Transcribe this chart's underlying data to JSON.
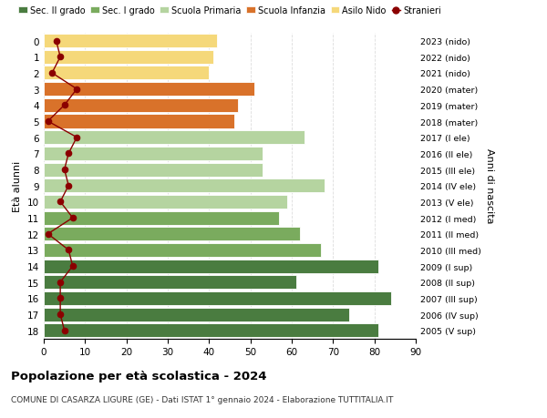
{
  "ages": [
    18,
    17,
    16,
    15,
    14,
    13,
    12,
    11,
    10,
    9,
    8,
    7,
    6,
    5,
    4,
    3,
    2,
    1,
    0
  ],
  "right_labels": [
    "2005 (V sup)",
    "2006 (IV sup)",
    "2007 (III sup)",
    "2008 (II sup)",
    "2009 (I sup)",
    "2010 (III med)",
    "2011 (II med)",
    "2012 (I med)",
    "2013 (V ele)",
    "2014 (IV ele)",
    "2015 (III ele)",
    "2016 (II ele)",
    "2017 (I ele)",
    "2018 (mater)",
    "2019 (mater)",
    "2020 (mater)",
    "2021 (nido)",
    "2022 (nido)",
    "2023 (nido)"
  ],
  "bar_values": [
    81,
    74,
    84,
    61,
    81,
    67,
    62,
    57,
    59,
    68,
    53,
    53,
    63,
    46,
    47,
    51,
    40,
    41,
    42
  ],
  "bar_colors": [
    "#4a7c40",
    "#4a7c40",
    "#4a7c40",
    "#4a7c40",
    "#4a7c40",
    "#7aab5e",
    "#7aab5e",
    "#7aab5e",
    "#b5d4a0",
    "#b5d4a0",
    "#b5d4a0",
    "#b5d4a0",
    "#b5d4a0",
    "#d9722a",
    "#d9722a",
    "#d9722a",
    "#f5d87a",
    "#f5d87a",
    "#f5d87a"
  ],
  "stranieri_values": [
    5,
    4,
    4,
    4,
    7,
    6,
    1,
    7,
    4,
    6,
    5,
    6,
    8,
    1,
    5,
    8,
    2,
    4,
    3
  ],
  "legend_labels": [
    "Sec. II grado",
    "Sec. I grado",
    "Scuola Primaria",
    "Scuola Infanzia",
    "Asilo Nido",
    "Stranieri"
  ],
  "legend_colors": [
    "#4a7c40",
    "#7aab5e",
    "#b5d4a0",
    "#d9722a",
    "#f5d87a",
    "#b22222"
  ],
  "ylabel": "Età alunni",
  "right_ylabel": "Anni di nascita",
  "title": "Popolazione per età scolastica - 2024",
  "subtitle": "COMUNE DI CASARZA LIGURE (GE) - Dati ISTAT 1° gennaio 2024 - Elaborazione TUTTITALIA.IT",
  "xlim": [
    0,
    90
  ],
  "xticks": [
    0,
    10,
    20,
    30,
    40,
    50,
    60,
    70,
    80,
    90
  ],
  "background_color": "#ffffff",
  "grid_color": "#dddddd"
}
